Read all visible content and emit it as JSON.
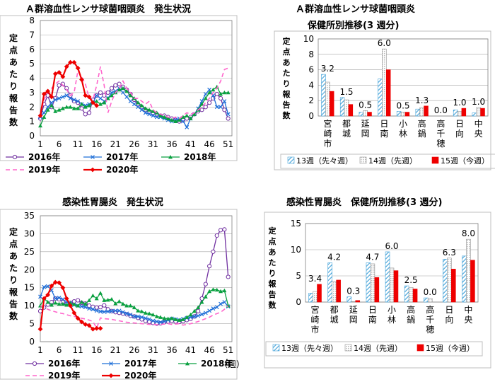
{
  "weeks_axis": [
    "1",
    "6",
    "11",
    "16",
    "21",
    "26",
    "31",
    "36",
    "41",
    "46",
    "51"
  ],
  "week_unit": "（週）",
  "colors": {
    "y2016": "#7030a0",
    "y2017": "#1f6fd8",
    "y2018": "#0aa040",
    "y2019": "#ff66cc",
    "y2020": "#ee0000",
    "b13": "#3fa0d8",
    "b14": "#c8c8c8",
    "b15": "#ee0000",
    "grid": "#a6a6a6",
    "frame": "#7f7f7f"
  },
  "ylabel": "定点あたり報告数",
  "chart_data": [
    {
      "type": "line",
      "title": "Ａ群溶血性レンサ球菌咽頭炎　発生状況",
      "ylim": [
        0,
        8
      ],
      "yticks": [
        0,
        1,
        2,
        3,
        4,
        5,
        6,
        7,
        8
      ],
      "series": [
        {
          "name": "2016年",
          "values": [
            1.2,
            2.2,
            2.8,
            2.0,
            2.6,
            3.5,
            3.6,
            3.3,
            2.8,
            2.4,
            2.3,
            1.9,
            1.5,
            1.6,
            2.5,
            2.8,
            3.0,
            2.8,
            3.0,
            3.3,
            3.5,
            3.6,
            3.4,
            3.2,
            2.9,
            2.5,
            2.2,
            2.0,
            1.8,
            1.7,
            1.6,
            1.5,
            1.4,
            1.4,
            1.3,
            1.2,
            1.1,
            1.0,
            1.1,
            1.2,
            1.3,
            1.5,
            1.7,
            1.8,
            2.0,
            2.3,
            2.6,
            2.9,
            2.6,
            1.8,
            1.2
          ]
        },
        {
          "name": "2017年",
          "values": [
            1.3,
            1.6,
            2.0,
            2.3,
            2.5,
            2.6,
            2.7,
            2.8,
            2.6,
            2.5,
            2.4,
            2.2,
            2.1,
            2.2,
            2.3,
            2.8,
            2.6,
            2.4,
            2.6,
            3.0,
            3.1,
            3.3,
            3.0,
            2.7,
            2.4,
            2.2,
            2.0,
            1.8,
            1.6,
            1.5,
            1.4,
            1.3,
            1.3,
            1.2,
            1.1,
            1.0,
            1.1,
            1.2,
            1.0,
            0.6,
            1.2,
            1.5,
            1.9,
            2.4,
            2.9,
            3.2,
            2.8,
            2.0,
            2.0,
            2.4,
            1.5
          ]
        },
        {
          "name": "2018年",
          "values": [
            0.7,
            1.3,
            1.8,
            2.1,
            1.7,
            1.8,
            1.9,
            2.0,
            2.0,
            1.9,
            1.9,
            2.2,
            2.0,
            2.1,
            2.3,
            2.4,
            2.2,
            2.3,
            2.6,
            2.8,
            3.0,
            3.2,
            3.3,
            3.1,
            2.8,
            2.6,
            2.3,
            2.1,
            1.9,
            1.8,
            1.7,
            1.6,
            1.4,
            1.3,
            1.2,
            1.1,
            1.0,
            1.1,
            1.3,
            1.4,
            1.2,
            1.5,
            1.8,
            2.2,
            2.6,
            3.0,
            3.2,
            3.4,
            2.9,
            3.0,
            3.0
          ]
        },
        {
          "name": "2019年",
          "values": [
            1.5,
            2.5,
            3.0,
            3.3,
            3.6,
            3.8,
            3.5,
            3.2,
            2.8,
            3.0,
            4.5,
            4.1,
            3.6,
            2.6,
            2.5,
            3.5,
            4.8,
            3.5,
            1.6,
            2.4,
            3.0,
            3.3,
            3.8,
            3.3,
            3.0,
            2.6,
            2.6,
            2.4,
            2.2,
            2.4,
            1.8,
            1.6,
            1.5,
            1.4,
            1.3,
            1.2,
            1.3,
            1.2,
            1.4,
            1.6,
            1.5,
            1.6,
            1.8,
            2.0,
            2.3,
            2.6,
            3.0,
            3.3,
            3.8,
            4.6,
            4.7
          ]
        },
        {
          "name": "2020年",
          "values": [
            1.4,
            2.9,
            3.1,
            2.7,
            4.3,
            4.4,
            4.1,
            4.8,
            5.1,
            5.1,
            4.7,
            3.9,
            2.8,
            2.7,
            2.3,
            2.1
          ]
        }
      ]
    },
    {
      "type": "bar",
      "title": "Ａ群溶血性レンサ球菌咽頭炎",
      "subtitle": "保健所別推移(3 週分)",
      "ylim": [
        0,
        10
      ],
      "yticks": [
        0,
        2,
        4,
        6,
        8,
        10
      ],
      "categories": [
        "宮崎市",
        "都城",
        "延岡",
        "日南",
        "小林",
        "高鍋",
        "高千穂",
        "日向",
        "中央"
      ],
      "series": [
        {
          "name": "13週（先々週）",
          "values": [
            5.4,
            2.4,
            0.5,
            4.8,
            0.6,
            0.9,
            0.0,
            0.8,
            0.4
          ]
        },
        {
          "name": "14週（先週）",
          "values": [
            4.4,
            2.1,
            0.7,
            8.7,
            0.5,
            1.1,
            0.0,
            0.6,
            1.1
          ]
        },
        {
          "name": "15週（今週）",
          "values": [
            3.2,
            1.5,
            0.5,
            6.0,
            0.5,
            1.3,
            0.0,
            1.0,
            1.0
          ]
        }
      ],
      "data_labels": [
        "3.2",
        "1.5",
        "0.5",
        "6.0",
        "0.5",
        "1.3",
        "0.0",
        "1.0",
        "1.0"
      ]
    },
    {
      "type": "line",
      "title": "感染性胃腸炎　発生状況",
      "ylim": [
        0,
        35
      ],
      "yticks": [
        0,
        5,
        10,
        15,
        20,
        25,
        30,
        35
      ],
      "series": [
        {
          "name": "2016年",
          "values": [
            8.5,
            9.5,
            10.3,
            11.0,
            12.0,
            11.8,
            11.0,
            10.5,
            10.8,
            11.2,
            11.5,
            10.8,
            10.6,
            10.0,
            9.7,
            9.5,
            9.6,
            10.1,
            9.0,
            8.5,
            8.2,
            8.0,
            7.8,
            7.6,
            7.2,
            7.0,
            6.6,
            6.2,
            5.8,
            5.5,
            5.2,
            5.0,
            5.1,
            5.4,
            5.6,
            5.8,
            5.6,
            5.5,
            5.7,
            6.0,
            6.3,
            7.0,
            8.5,
            12.0,
            16.0,
            21.0,
            25.0,
            29.5,
            31.0,
            31.2,
            18.0
          ]
        },
        {
          "name": "2017年",
          "values": [
            12.5,
            15.2,
            15.4,
            14.3,
            12.0,
            12.2,
            11.8,
            11.0,
            10.7,
            10.2,
            10.0,
            9.8,
            9.6,
            9.2,
            9.0,
            8.6,
            8.4,
            8.3,
            8.4,
            8.5,
            8.6,
            8.6,
            8.2,
            7.8,
            7.5,
            7.0,
            7.0,
            6.8,
            6.5,
            6.2,
            5.8,
            5.6,
            5.4,
            5.6,
            6.0,
            6.4,
            6.2,
            6.0,
            6.3,
            6.6,
            6.8,
            7.0,
            7.2,
            7.6,
            8.0,
            8.6,
            9.2,
            9.6,
            10.5,
            11.0,
            9.8
          ]
        },
        {
          "name": "2018年",
          "values": [
            10.0,
            12.0,
            11.0,
            10.2,
            10.8,
            10.5,
            10.5,
            10.2,
            10.7,
            10.4,
            10.0,
            11.0,
            10.5,
            11.5,
            12.8,
            12.0,
            13.5,
            11.5,
            11.6,
            11.8,
            10.6,
            11.2,
            10.5,
            10.0,
            10.0,
            9.5,
            8.6,
            8.4,
            8.0,
            7.8,
            7.5,
            7.0,
            6.8,
            6.5,
            6.4,
            6.5,
            6.2,
            6.0,
            6.2,
            6.8,
            7.5,
            8.5,
            9.5,
            11.0,
            12.5,
            14.0,
            14.5,
            14.4,
            14.0,
            14.2,
            10.0
          ]
        },
        {
          "name": "2019年",
          "values": [
            10.0,
            9.5,
            9.0,
            8.6,
            8.3,
            8.0,
            7.8,
            7.5,
            7.2,
            7.0,
            6.8,
            6.5,
            6.3,
            6.0,
            5.6,
            3.8,
            6.6,
            6.4,
            6.3,
            6.2,
            6.0,
            5.8,
            5.6,
            5.4,
            5.3,
            5.2,
            5.1,
            5.0,
            4.9,
            4.8,
            4.8,
            4.7,
            4.8,
            4.9,
            5.0,
            4.8,
            4.9,
            5.0,
            4.6,
            4.8,
            5.0,
            5.3,
            5.6,
            6.0,
            6.4,
            6.8,
            7.4,
            7.8,
            8.2,
            9.0,
            10.0
          ]
        },
        {
          "name": "2020年",
          "values": [
            3.5,
            12.0,
            13.0,
            15.5,
            16.5,
            16.4,
            15.0,
            12.0,
            10.0,
            8.0,
            6.5,
            5.5,
            4.8,
            4.5,
            3.5,
            3.7,
            3.7
          ]
        }
      ]
    },
    {
      "type": "bar",
      "title": "感染性胃腸炎　保健所別推移(3 週分)",
      "ylim": [
        0,
        15
      ],
      "yticks": [
        0,
        5,
        10,
        15
      ],
      "categories": [
        "宮崎市",
        "都城",
        "延岡",
        "日南",
        "小林",
        "高鍋",
        "高千穂",
        "日向",
        "中央"
      ],
      "series": [
        {
          "name": "13週（先々週）",
          "values": [
            1.7,
            7.5,
            1.0,
            7.5,
            9.6,
            3.1,
            0.8,
            8.2,
            8.8
          ]
        },
        {
          "name": "14週（先週）",
          "values": [
            2.0,
            4.0,
            0.1,
            7.3,
            6.5,
            2.8,
            0.7,
            8.4,
            12.0
          ]
        },
        {
          "name": "15週（今週）",
          "values": [
            3.4,
            4.2,
            0.3,
            4.7,
            6.0,
            2.5,
            0.0,
            6.3,
            8.0
          ]
        }
      ],
      "data_labels": [
        "3.4",
        "4.2",
        "0.3",
        "4.7",
        "6.0",
        "2.5",
        "0.0",
        "6.3",
        "8.0"
      ]
    }
  ]
}
